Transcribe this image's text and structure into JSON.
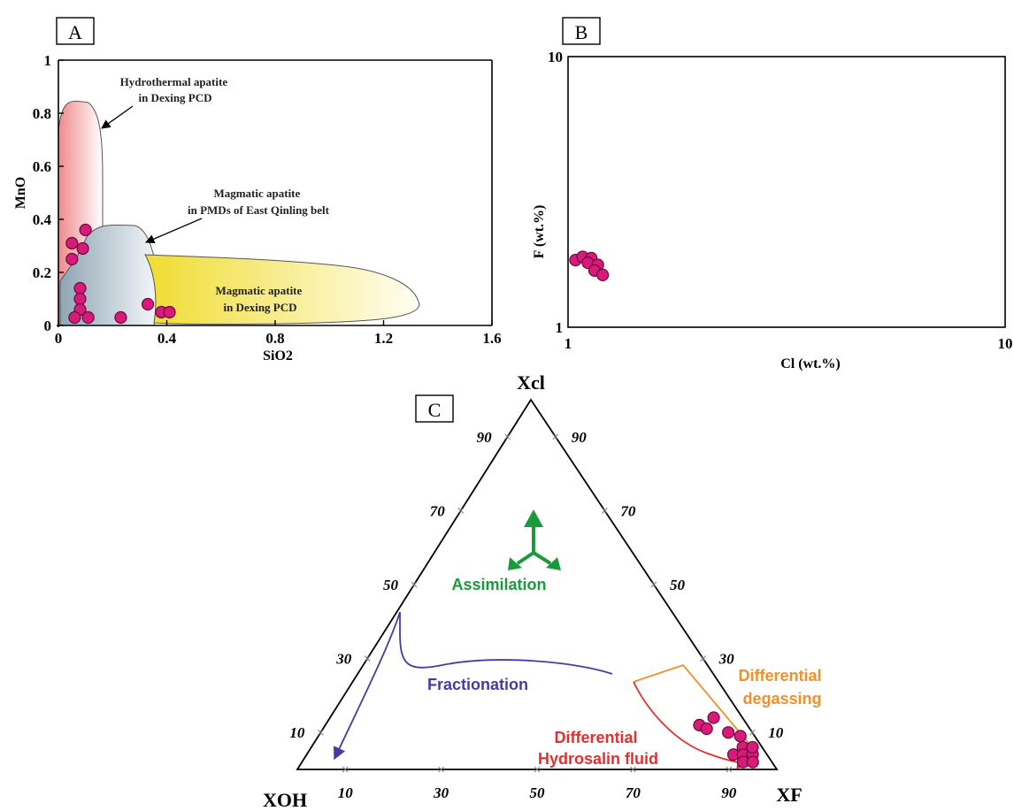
{
  "colors": {
    "point": "#d81b7a",
    "hydrothermal_field": "#f4a0a0",
    "pmd_field": "#a9bcc8",
    "dexing_field": "#f2e25a",
    "assimilation": "#1a9a3a",
    "fractionation": "#4a3aa0",
    "degassing": "#f0902a",
    "hydrosalin": "#e03030"
  },
  "chart_data": [
    {
      "panel": "A",
      "type": "scatter",
      "xlabel": "SiO2",
      "ylabel": "MnO",
      "xlim": [
        0,
        1.6
      ],
      "ylim": [
        0,
        1
      ],
      "xticks": [
        "0",
        "0.4",
        "0.8",
        "1.2",
        "1.6"
      ],
      "yticks": [
        "0",
        "0.2",
        "0.4",
        "0.6",
        "0.8",
        "1"
      ],
      "fields": [
        {
          "label_lines": [
            "Hydrothermal apatite",
            "in Dexing PCD"
          ]
        },
        {
          "label_lines": [
            "Magmatic apatite",
            "in PMDs of East Qinling belt"
          ]
        },
        {
          "label_lines": [
            "Magmatic apatite",
            "in Dexing PCD"
          ]
        }
      ],
      "points": [
        {
          "x": 0.05,
          "y": 0.31
        },
        {
          "x": 0.1,
          "y": 0.36
        },
        {
          "x": 0.09,
          "y": 0.29
        },
        {
          "x": 0.05,
          "y": 0.25
        },
        {
          "x": 0.08,
          "y": 0.14
        },
        {
          "x": 0.08,
          "y": 0.1
        },
        {
          "x": 0.08,
          "y": 0.06
        },
        {
          "x": 0.06,
          "y": 0.03
        },
        {
          "x": 0.11,
          "y": 0.03
        },
        {
          "x": 0.23,
          "y": 0.03
        },
        {
          "x": 0.33,
          "y": 0.08
        },
        {
          "x": 0.38,
          "y": 0.05
        },
        {
          "x": 0.41,
          "y": 0.05
        }
      ]
    },
    {
      "panel": "B",
      "type": "scatter",
      "xlabel": "Cl (wt.%)",
      "ylabel": "F (wt.%)",
      "xscale": "log",
      "yscale": "log",
      "xlim": [
        1,
        10
      ],
      "ylim": [
        1,
        10
      ],
      "xticks": [
        "1",
        "10"
      ],
      "yticks": [
        "1",
        "10"
      ],
      "points": [
        {
          "x": 1.04,
          "y": 1.77
        },
        {
          "x": 1.08,
          "y": 1.82
        },
        {
          "x": 1.13,
          "y": 1.8
        },
        {
          "x": 1.11,
          "y": 1.73
        },
        {
          "x": 1.17,
          "y": 1.7
        },
        {
          "x": 1.15,
          "y": 1.62
        },
        {
          "x": 1.2,
          "y": 1.56
        }
      ]
    },
    {
      "panel": "C",
      "type": "ternary",
      "vertices": {
        "top": "Xcl",
        "left": "XOH",
        "right": "XF"
      },
      "tick_labels": [
        "10",
        "30",
        "50",
        "70",
        "90"
      ],
      "process_labels": {
        "assimilation": "Assimilation",
        "fractionation": "Fractionation",
        "degassing": [
          "Differential",
          "degassing"
        ],
        "hydrosalin": [
          "Differential",
          "Hydrosalin fluid"
        ]
      },
      "points": [
        {
          "xoh": 10,
          "xcl": 12,
          "xf": 78
        },
        {
          "xoh": 9,
          "xcl": 11,
          "xf": 80
        },
        {
          "xoh": 3,
          "xcl": 9,
          "xf": 88
        },
        {
          "xoh": 6,
          "xcl": 14,
          "xf": 80
        },
        {
          "xoh": 5,
          "xcl": 10,
          "xf": 85
        },
        {
          "xoh": 4,
          "xcl": 6,
          "xf": 90
        },
        {
          "xoh": 7,
          "xcl": 4,
          "xf": 89
        },
        {
          "xoh": 5,
          "xcl": 4,
          "xf": 91
        },
        {
          "xoh": 3,
          "xcl": 4,
          "xf": 93
        },
        {
          "xoh": 6,
          "xcl": 2,
          "xf": 92
        },
        {
          "xoh": 4,
          "xcl": 2,
          "xf": 94
        },
        {
          "xoh": 2,
          "xcl": 6,
          "xf": 92
        }
      ]
    }
  ]
}
